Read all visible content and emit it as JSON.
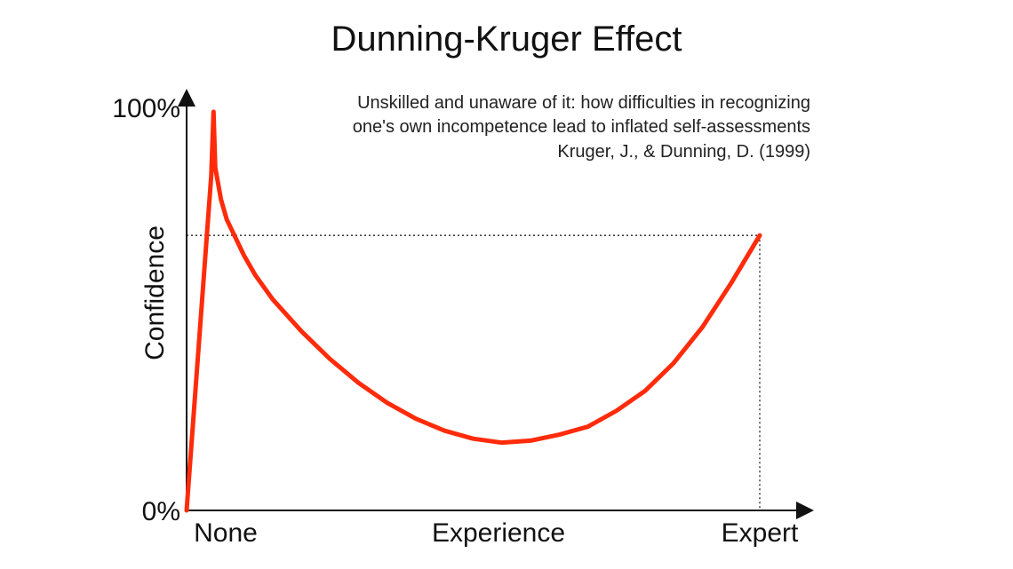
{
  "chart_data": {
    "type": "line",
    "title": "Dunning-Kruger Effect",
    "xlabel": "Experience",
    "ylabel": "Confidence",
    "x_tick_labels": [
      "None",
      "Experience",
      "Expert"
    ],
    "y_tick_labels": [
      "0%",
      "100%"
    ],
    "xlim": [
      0,
      100
    ],
    "ylim": [
      0,
      100
    ],
    "grid": false,
    "annotation": {
      "lines": [
        "Unskilled and unaware of it: how difficulties in recognizing",
        "one's own incompetence lead to inflated self-assessments",
        "Kruger, J., & Dunning, D. (1999)"
      ]
    },
    "reference_point": {
      "x": 100,
      "y": 69
    },
    "series": [
      {
        "color": "#ff2b0a",
        "points": [
          [
            0,
            0
          ],
          [
            4.3,
            84
          ],
          [
            4.7,
            100
          ],
          [
            5.0,
            86
          ],
          [
            6,
            78
          ],
          [
            7,
            73
          ],
          [
            8,
            70
          ],
          [
            10,
            64
          ],
          [
            12,
            59
          ],
          [
            15,
            53
          ],
          [
            20,
            45
          ],
          [
            25,
            38
          ],
          [
            30,
            32
          ],
          [
            35,
            27
          ],
          [
            40,
            23
          ],
          [
            45,
            20
          ],
          [
            50,
            18
          ],
          [
            55,
            17
          ],
          [
            60,
            17.5
          ],
          [
            65,
            19
          ],
          [
            70,
            21
          ],
          [
            75,
            25
          ],
          [
            80,
            30
          ],
          [
            85,
            37
          ],
          [
            90,
            46
          ],
          [
            95,
            57
          ],
          [
            100,
            69
          ]
        ]
      }
    ]
  }
}
